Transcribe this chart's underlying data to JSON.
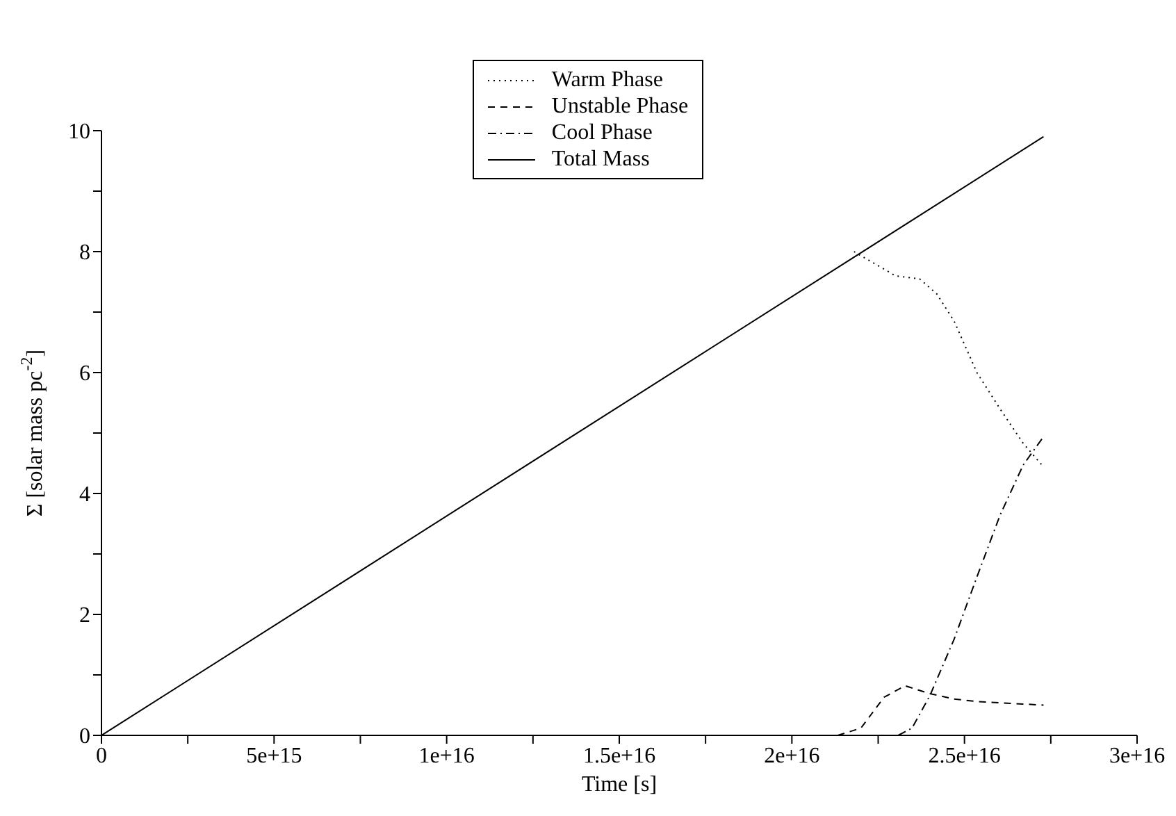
{
  "chart_data": {
    "type": "line",
    "xlabel": "Time [s]",
    "ylabel": "Σ [solar mass pc$^{-2}$]",
    "xlim": [
      0,
      3e+16
    ],
    "ylim": [
      0,
      10
    ],
    "xticks": [
      0,
      {
        "value": 2500000000000000.0,
        "label": null
      },
      {
        "value": 5000000000000000.0,
        "label": "5e+15"
      },
      {
        "value": 7500000000000000.0,
        "label": null
      },
      {
        "value": 1e+16,
        "label": "1e+16"
      },
      {
        "value": 1.25e+16,
        "label": null
      },
      {
        "value": 1.5e+16,
        "label": "1.5e+16"
      },
      {
        "value": 1.75e+16,
        "label": null
      },
      {
        "value": 2e+16,
        "label": "2e+16"
      },
      {
        "value": 2.25e+16,
        "label": null
      },
      {
        "value": 2.5e+16,
        "label": "2.5e+16"
      },
      {
        "value": 2.75e+16,
        "label": null
      },
      {
        "value": 3e+16,
        "label": "3e+16"
      }
    ],
    "yticks": [
      0,
      {
        "value": 1,
        "label": null
      },
      2,
      {
        "value": 3,
        "label": null
      },
      4,
      {
        "value": 5,
        "label": null
      },
      6,
      {
        "value": 7,
        "label": null
      },
      8,
      {
        "value": 9,
        "label": null
      },
      10
    ],
    "grid": false,
    "legend": "top",
    "marker": "none",
    "series": [
      {
        "name": "Warm Phase",
        "color": "#000000",
        "line_style": "dotted",
        "x": [
          2.18e+16,
          2.3e+16,
          2.37e+16,
          2.42e+16,
          2.47e+16,
          2.536e+16,
          2.603e+16,
          2.67e+16,
          2.729e+16
        ],
        "values": [
          8.0,
          7.6,
          7.55,
          7.3,
          6.85,
          6.0,
          5.4,
          4.83,
          4.44
        ]
      },
      {
        "name": "Unstable Phase",
        "color": "#000000",
        "line_style": "dashed",
        "x": [
          2.133e+16,
          2.2e+16,
          2.267e+16,
          2.328e+16,
          2.4e+16,
          2.47e+16,
          2.536e+16,
          2.729e+16
        ],
        "values": [
          0,
          0.12,
          0.63,
          0.82,
          0.69,
          0.6,
          0.56,
          0.5
        ]
      },
      {
        "name": "Cool Phase",
        "color": "#000000",
        "line_style": "dashdot",
        "x": [
          2.308e+16,
          2.348e+16,
          2.4e+16,
          2.47e+16,
          2.536e+16,
          2.603e+16,
          2.67e+16,
          2.729e+16
        ],
        "values": [
          0,
          0.12,
          0.66,
          1.59,
          2.62,
          3.64,
          4.47,
          4.94
        ]
      },
      {
        "name": "Total Mass",
        "color": "#000000",
        "line_style": "solid",
        "x": [
          0,
          2.729e+16
        ],
        "values": [
          0,
          9.9
        ]
      }
    ]
  }
}
